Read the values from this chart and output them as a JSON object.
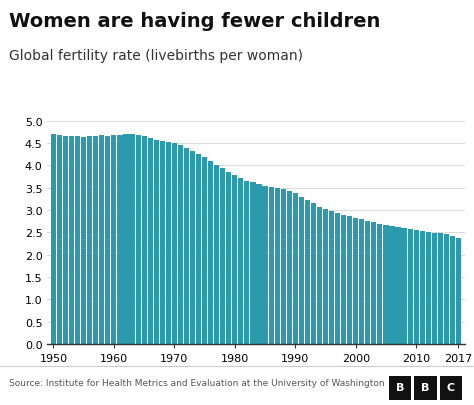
{
  "title": "Women are having fewer children",
  "subtitle": "Global fertility rate (livebirths per woman)",
  "source": "Source: Institute for Health Metrics and Evaluation at the University of Washington",
  "bar_color": "#2a9aac",
  "background_color": "#ffffff",
  "title_fontsize": 14,
  "subtitle_fontsize": 10,
  "ylim": [
    0,
    5.0
  ],
  "yticks": [
    0,
    0.5,
    1.0,
    1.5,
    2.0,
    2.5,
    3.0,
    3.5,
    4.0,
    4.5,
    5.0
  ],
  "xtick_labels": [
    "1950",
    "1960",
    "1970",
    "1980",
    "1990",
    "2000",
    "2010",
    "2017"
  ],
  "years": [
    1950,
    1951,
    1952,
    1953,
    1954,
    1955,
    1956,
    1957,
    1958,
    1959,
    1960,
    1961,
    1962,
    1963,
    1964,
    1965,
    1966,
    1967,
    1968,
    1969,
    1970,
    1971,
    1972,
    1973,
    1974,
    1975,
    1976,
    1977,
    1978,
    1979,
    1980,
    1981,
    1982,
    1983,
    1984,
    1985,
    1986,
    1987,
    1988,
    1989,
    1990,
    1991,
    1992,
    1993,
    1994,
    1995,
    1996,
    1997,
    1998,
    1999,
    2000,
    2001,
    2002,
    2003,
    2004,
    2005,
    2006,
    2007,
    2008,
    2009,
    2010,
    2011,
    2012,
    2013,
    2014,
    2015,
    2016,
    2017
  ],
  "values": [
    4.7,
    4.68,
    4.67,
    4.65,
    4.65,
    4.64,
    4.65,
    4.67,
    4.68,
    4.67,
    4.68,
    4.69,
    4.7,
    4.7,
    4.68,
    4.65,
    4.62,
    4.58,
    4.55,
    4.53,
    4.5,
    4.45,
    4.38,
    4.32,
    4.25,
    4.18,
    4.1,
    4.02,
    3.94,
    3.86,
    3.78,
    3.72,
    3.66,
    3.62,
    3.58,
    3.55,
    3.52,
    3.5,
    3.47,
    3.43,
    3.38,
    3.3,
    3.22,
    3.15,
    3.08,
    3.02,
    2.97,
    2.93,
    2.9,
    2.87,
    2.83,
    2.79,
    2.76,
    2.73,
    2.7,
    2.67,
    2.64,
    2.62,
    2.6,
    2.57,
    2.55,
    2.53,
    2.51,
    2.49,
    2.48,
    2.47,
    2.43,
    2.37
  ]
}
